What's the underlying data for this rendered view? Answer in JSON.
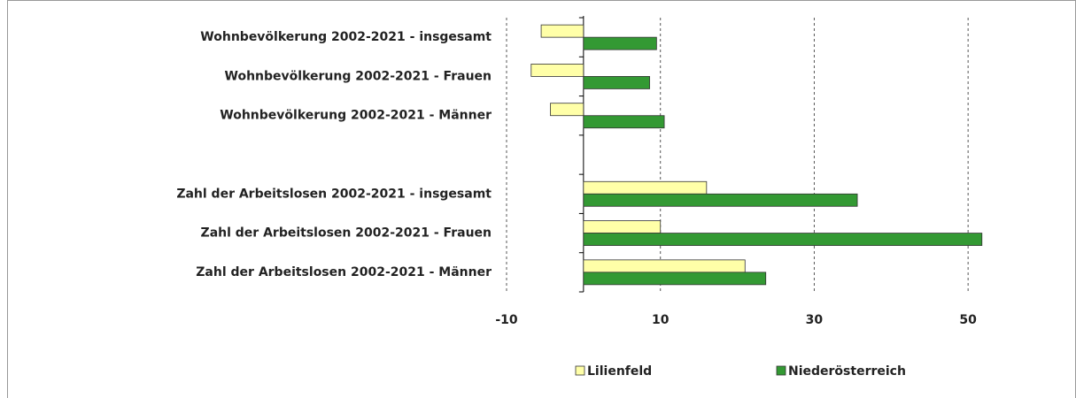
{
  "chart_data": {
    "type": "bar",
    "orientation": "horizontal",
    "categories": [
      "Wohnbevölkerung 2002-2021 - insgesamt",
      "Wohnbevölkerung 2002-2021 - Frauen",
      "Wohnbevölkerung 2002-2021 - Männer",
      null,
      "Zahl der Arbeitslosen 2002-2021 - insgesamt",
      "Zahl der Arbeitslosen 2002-2021 - Frauen",
      "Zahl der Arbeitslosen 2002-2021 - Männer"
    ],
    "series": [
      {
        "name": "Lilienfeld",
        "color": "#ffffa8",
        "values": [
          -5.5,
          -6.8,
          -4.3,
          null,
          16.0,
          10.0,
          21.0
        ]
      },
      {
        "name": "Niederösterreich",
        "color": "#339933",
        "values": [
          9.5,
          8.6,
          10.5,
          null,
          35.6,
          51.8,
          23.7
        ]
      }
    ],
    "xlim": [
      -10,
      60
    ],
    "xticks": [
      -10,
      10,
      30,
      50
    ],
    "grid": true,
    "legend": "bottom"
  }
}
